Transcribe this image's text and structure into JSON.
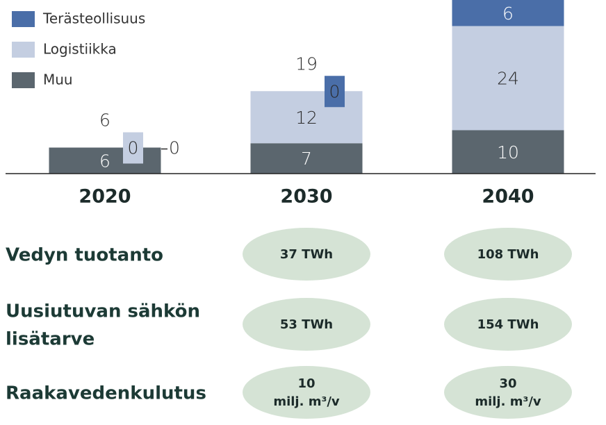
{
  "chart_data": {
    "type": "stacked_bar",
    "categories": [
      "2020",
      "2030",
      "2040"
    ],
    "series": [
      {
        "name": "Muu",
        "color": "#5b666e",
        "values": [
          6,
          7,
          10
        ]
      },
      {
        "name": "Logistiikka",
        "color": "#c4cee1",
        "values": [
          0,
          12,
          24
        ]
      },
      {
        "name": "Terästeollisuus",
        "color": "#4a6ea8",
        "values": [
          0,
          0,
          6
        ]
      }
    ],
    "total_labels": [
      "6",
      "19",
      null
    ],
    "ylim": [
      0,
      40
    ]
  },
  "table": {
    "rows": [
      {
        "label": [
          "Vedyn tuotanto"
        ],
        "cells": [
          [
            "37 TWh"
          ],
          [
            "108 TWh"
          ]
        ]
      },
      {
        "label": [
          "Uusiutuvan sähkön",
          "lisätarve"
        ],
        "cells": [
          [
            "53 TWh"
          ],
          [
            "154 TWh"
          ]
        ]
      },
      {
        "label": [
          "Raakavedenkulutus"
        ],
        "cells": [
          [
            "10",
            "milj. m³/v"
          ],
          [
            "30",
            "milj. m³/v"
          ]
        ]
      }
    ]
  }
}
